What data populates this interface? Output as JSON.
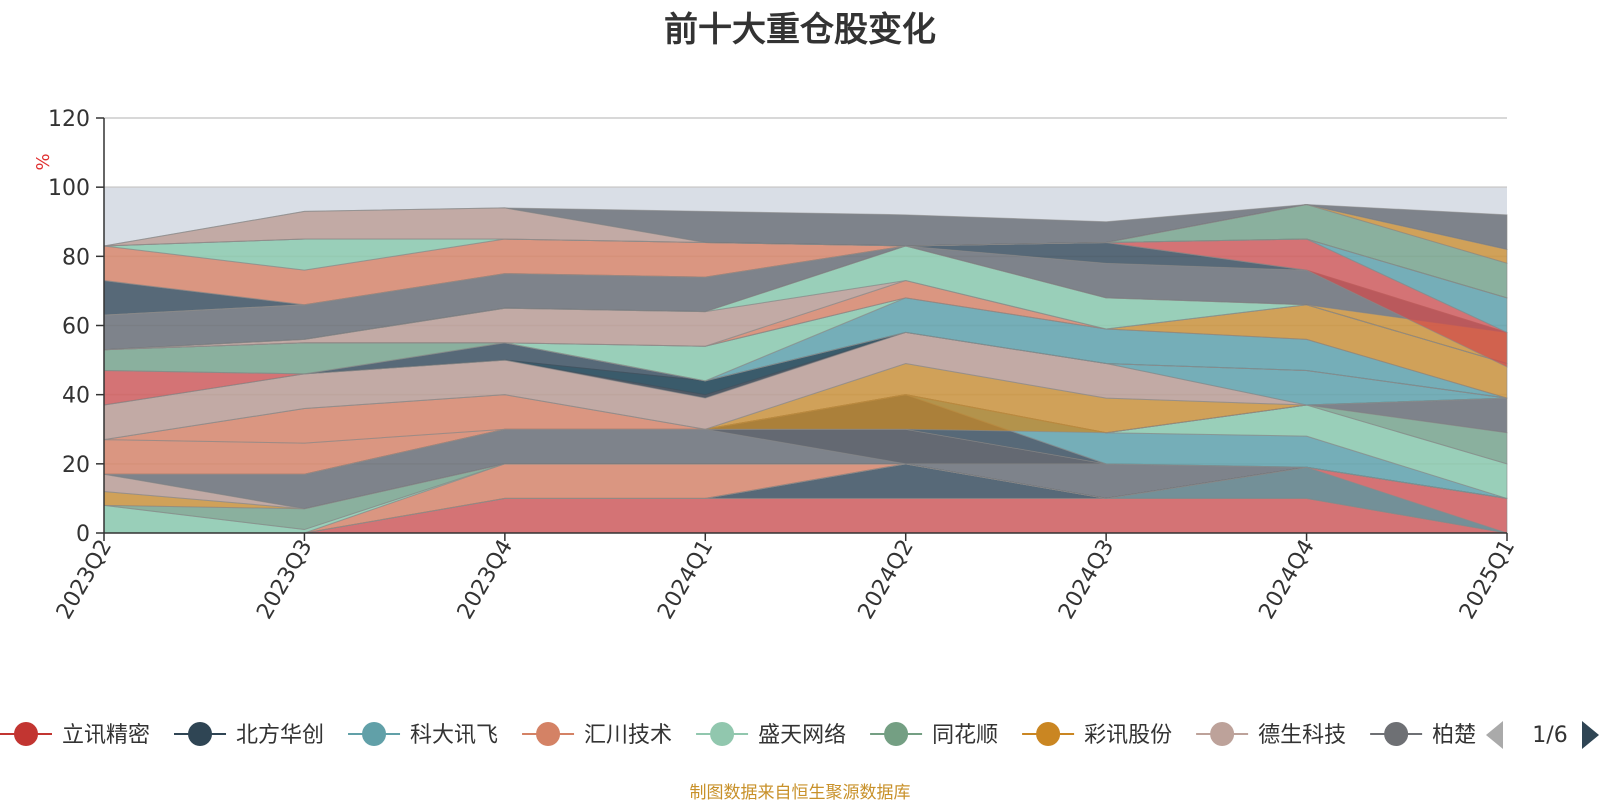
{
  "chart_data": {
    "type": "area",
    "title": "前十大重仓股变化",
    "ylabel": "%",
    "ylim": [
      0,
      120
    ],
    "yticks": [
      0,
      20,
      40,
      60,
      80,
      100,
      120
    ],
    "categories": [
      "2023Q2",
      "2023Q3",
      "2023Q4",
      "2024Q1",
      "2024Q2",
      "2024Q3",
      "2024Q4",
      "2025Q1"
    ],
    "layers": [
      {
        "color": "#d14a4a",
        "lower": [
          0,
          0,
          0,
          0,
          0,
          0,
          0,
          0
        ],
        "upper": [
          0,
          0,
          10,
          10,
          10,
          10,
          10,
          0
        ]
      },
      {
        "color": "#243b4e",
        "lower": [
          0,
          0,
          10,
          10,
          10,
          10,
          10,
          0
        ],
        "upper": [
          0,
          0,
          10,
          10,
          20,
          10,
          10,
          0
        ]
      },
      {
        "color": "#d14a4a",
        "lower": [
          0,
          0,
          10,
          10,
          20,
          10,
          10,
          0
        ],
        "upper": [
          0,
          0,
          10,
          10,
          20,
          10,
          19,
          10
        ]
      },
      {
        "color": "#4e9ba6",
        "lower": [
          0,
          0,
          10,
          10,
          20,
          10,
          19,
          10
        ],
        "upper": [
          0,
          0,
          10,
          10,
          20,
          10,
          19,
          10
        ]
      },
      {
        "color": "#4e9ba6",
        "lower": [
          0,
          0,
          10,
          10,
          20,
          10,
          10,
          0
        ],
        "upper": [
          0,
          0,
          10,
          10,
          20,
          10,
          19,
          0
        ]
      },
      {
        "color": "#da7a5a",
        "lower": [
          0,
          0,
          10,
          10,
          20,
          10,
          19,
          10
        ],
        "upper": [
          0,
          0,
          20,
          20,
          20,
          10,
          19,
          10
        ]
      },
      {
        "color": "#7fc9a8",
        "lower": [
          0,
          0,
          20,
          20,
          20,
          10,
          19,
          10
        ],
        "upper": [
          8,
          1,
          20,
          20,
          20,
          10,
          19,
          10
        ]
      },
      {
        "color": "#6b9e82",
        "lower": [
          8,
          1,
          20,
          20,
          20,
          10,
          19,
          10
        ],
        "upper": [
          8,
          7,
          20,
          20,
          20,
          10,
          19,
          10
        ]
      },
      {
        "color": "#cc8922",
        "lower": [
          8,
          7,
          20,
          20,
          20,
          10,
          19,
          10
        ],
        "upper": [
          12,
          7,
          20,
          20,
          20,
          10,
          19,
          10
        ]
      },
      {
        "color": "#b8958c",
        "lower": [
          12,
          7,
          20,
          20,
          20,
          10,
          19,
          10
        ],
        "upper": [
          17,
          7,
          20,
          20,
          20,
          10,
          19,
          10
        ]
      },
      {
        "color": "#5a5f68",
        "lower": [
          17,
          7,
          20,
          20,
          20,
          10,
          19,
          10
        ],
        "upper": [
          17,
          17,
          30,
          30,
          30,
          20,
          19,
          10
        ]
      },
      {
        "color": "#5a5f68",
        "lower": [
          17,
          17,
          30,
          30,
          20,
          20,
          19,
          10
        ],
        "upper": [
          17,
          17,
          30,
          30,
          30,
          20,
          19,
          10
        ]
      },
      {
        "color": "#243b4e",
        "lower": [
          17,
          17,
          30,
          30,
          30,
          20,
          19,
          10
        ],
        "upper": [
          17,
          17,
          30,
          30,
          40,
          20,
          19,
          10
        ]
      },
      {
        "color": "#4e9ba6",
        "lower": [
          17,
          17,
          30,
          30,
          40,
          20,
          19,
          10
        ],
        "upper": [
          17,
          17,
          30,
          30,
          40,
          29,
          28,
          10
        ]
      },
      {
        "color": "#7fc9a8",
        "lower": [
          17,
          17,
          30,
          30,
          40,
          29,
          28,
          10
        ],
        "upper": [
          17,
          17,
          30,
          30,
          40,
          29,
          37,
          20
        ]
      },
      {
        "color": "#6b9e82",
        "lower": [
          17,
          17,
          30,
          30,
          40,
          29,
          37,
          20
        ],
        "upper": [
          17,
          17,
          30,
          30,
          40,
          29,
          37,
          29
        ]
      },
      {
        "color": "#5a5f68",
        "lower": [
          17,
          17,
          30,
          30,
          40,
          29,
          37,
          29
        ],
        "upper": [
          17,
          17,
          30,
          30,
          40,
          29,
          37,
          39
        ]
      },
      {
        "color": "#da7a5a",
        "lower": [
          17,
          17,
          30,
          30,
          40,
          29,
          37,
          39
        ],
        "upper": [
          27,
          26,
          30,
          30,
          40,
          29,
          37,
          39
        ]
      },
      {
        "color": "#da7a5a",
        "lower": [
          27,
          26,
          30,
          30,
          40,
          29,
          37,
          39
        ],
        "upper": [
          27,
          36,
          40,
          30,
          40,
          29,
          37,
          39
        ]
      },
      {
        "color": "#cc8922",
        "lower": [
          27,
          36,
          40,
          30,
          30,
          29,
          37,
          39
        ],
        "upper": [
          27,
          36,
          40,
          30,
          49,
          39,
          37,
          39
        ]
      },
      {
        "color": "#b8958c",
        "lower": [
          27,
          36,
          40,
          30,
          49,
          39,
          37,
          39
        ],
        "upper": [
          37,
          46,
          50,
          40,
          58,
          49,
          37,
          39
        ]
      },
      {
        "color": "#4e9ba6",
        "lower": [
          37,
          46,
          50,
          40,
          58,
          49,
          37,
          39
        ],
        "upper": [
          37,
          46,
          50,
          44,
          58,
          49,
          47,
          39
        ]
      },
      {
        "color": "#d14a4a",
        "lower": [
          37,
          46,
          50,
          44,
          58,
          49,
          47,
          39
        ],
        "upper": [
          47,
          46,
          50,
          44,
          58,
          49,
          47,
          39
        ]
      },
      {
        "color": "#243b4e",
        "lower": [
          47,
          46,
          50,
          39,
          58,
          49,
          47,
          39
        ],
        "upper": [
          47,
          46,
          55,
          44,
          58,
          49,
          47,
          39
        ]
      },
      {
        "color": "#6b9e82",
        "lower": [
          47,
          46,
          55,
          44,
          58,
          49,
          47,
          39
        ],
        "upper": [
          53,
          55,
          55,
          44,
          58,
          49,
          47,
          39
        ]
      },
      {
        "color": "#4e9ba6",
        "lower": [
          53,
          55,
          55,
          44,
          58,
          49,
          47,
          39
        ],
        "upper": [
          53,
          55,
          55,
          44,
          68,
          59,
          56,
          39
        ]
      },
      {
        "color": "#7fc9a8",
        "lower": [
          53,
          55,
          55,
          44,
          68,
          59,
          56,
          39
        ],
        "upper": [
          53,
          55,
          55,
          54,
          68,
          59,
          56,
          39
        ]
      },
      {
        "color": "#cc8922",
        "lower": [
          53,
          55,
          55,
          54,
          68,
          59,
          56,
          39
        ],
        "upper": [
          53,
          55,
          55,
          54,
          68,
          59,
          66,
          49
        ]
      },
      {
        "color": "#da7a5a",
        "lower": [
          53,
          55,
          55,
          54,
          68,
          59,
          66,
          49
        ],
        "upper": [
          53,
          55,
          55,
          54,
          73,
          59,
          66,
          49
        ]
      },
      {
        "color": "#b8958c",
        "lower": [
          53,
          55,
          55,
          54,
          73,
          59,
          66,
          49
        ],
        "upper": [
          53,
          56,
          65,
          64,
          73,
          59,
          66,
          49
        ]
      },
      {
        "color": "#7fc9a8",
        "lower": [
          53,
          56,
          65,
          64,
          73,
          59,
          66,
          49
        ],
        "upper": [
          53,
          56,
          65,
          64,
          83,
          68,
          66,
          49
        ]
      },
      {
        "color": "#cc8922",
        "lower": [
          53,
          56,
          65,
          64,
          83,
          68,
          66,
          49
        ],
        "upper": [
          53,
          56,
          65,
          64,
          83,
          68,
          66,
          58
        ]
      },
      {
        "color": "#5a5f68",
        "lower": [
          53,
          56,
          65,
          64,
          83,
          68,
          66,
          58
        ],
        "upper": [
          63,
          66,
          75,
          74,
          83,
          78,
          76,
          58
        ]
      },
      {
        "color": "#243b4e",
        "lower": [
          63,
          66,
          75,
          74,
          83,
          78,
          76,
          58
        ],
        "upper": [
          73,
          66,
          75,
          74,
          83,
          84,
          76,
          58
        ]
      },
      {
        "color": "#d14a4a",
        "lower": [
          63,
          66,
          75,
          74,
          83,
          84,
          76,
          48
        ],
        "upper": [
          63,
          66,
          75,
          74,
          83,
          84,
          85,
          58
        ]
      },
      {
        "color": "#4e9ba6",
        "lower": [
          63,
          66,
          75,
          74,
          83,
          84,
          85,
          58
        ],
        "upper": [
          63,
          66,
          75,
          74,
          83,
          84,
          85,
          68
        ]
      },
      {
        "color": "#da7a5a",
        "lower": [
          73,
          66,
          75,
          74,
          83,
          84,
          85,
          68
        ],
        "upper": [
          83,
          76,
          85,
          84,
          83,
          84,
          85,
          68
        ]
      },
      {
        "color": "#7fc9a8",
        "lower": [
          83,
          76,
          85,
          84,
          83,
          84,
          85,
          68
        ],
        "upper": [
          83,
          85,
          85,
          84,
          83,
          84,
          85,
          68
        ]
      },
      {
        "color": "#6b9e82",
        "lower": [
          83,
          85,
          85,
          84,
          83,
          84,
          85,
          68
        ],
        "upper": [
          83,
          85,
          85,
          84,
          83,
          84,
          95,
          78
        ]
      },
      {
        "color": "#cc8922",
        "lower": [
          83,
          85,
          85,
          84,
          83,
          84,
          95,
          78
        ],
        "upper": [
          83,
          85,
          85,
          84,
          83,
          84,
          95,
          82
        ]
      },
      {
        "color": "#b8958c",
        "lower": [
          83,
          85,
          85,
          84,
          83,
          84,
          95,
          82
        ],
        "upper": [
          83,
          93,
          94,
          84,
          83,
          84,
          95,
          82
        ]
      },
      {
        "color": "#5a5f68",
        "lower": [
          83,
          93,
          94,
          84,
          83,
          84,
          95,
          82
        ],
        "upper": [
          83,
          93,
          94,
          93,
          92,
          90,
          95,
          92
        ]
      }
    ],
    "legend": {
      "placement": "bottom",
      "page": "1/6",
      "items": [
        {
          "name": "立讯精密",
          "color": "#c23531"
        },
        {
          "name": "北方华创",
          "color": "#2f4554"
        },
        {
          "name": "科大讯飞",
          "color": "#61a0a8"
        },
        {
          "name": "汇川技术",
          "color": "#d48265"
        },
        {
          "name": "盛天网络",
          "color": "#91c7ae"
        },
        {
          "name": "同花顺",
          "color": "#749f83"
        },
        {
          "name": "彩讯股份",
          "color": "#ca8622"
        },
        {
          "name": "德生科技",
          "color": "#bda29a"
        },
        {
          "name": "柏楚",
          "color": "#6e7074"
        }
      ]
    }
  },
  "footer": "制图数据来自恒生聚源数据库"
}
